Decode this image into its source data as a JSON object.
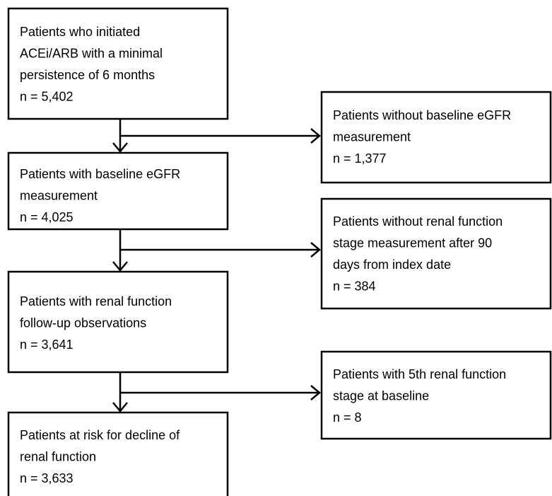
{
  "nodes": [
    {
      "lines": [
        "Patients who initiated",
        "ACEi/ARB with a minimal",
        "persistence of 6 months",
        "n = 5,402"
      ]
    },
    {
      "lines": [
        "Patients without baseline eGFR",
        "measurement",
        "n = 1,377"
      ]
    },
    {
      "lines": [
        "Patients with baseline eGFR",
        "measurement",
        "n = 4,025"
      ]
    },
    {
      "lines": [
        "Patients without renal function",
        "stage measurement after 90",
        "days from index date",
        "n = 384"
      ]
    },
    {
      "lines": [
        "Patients with renal function",
        "follow-up observations",
        "n = 3,641"
      ]
    },
    {
      "lines": [
        "Patients with 5th renal function",
        "stage at baseline",
        "n = 8"
      ]
    },
    {
      "lines": [
        "Patients at risk for decline of",
        "renal function",
        "n = 3,633"
      ]
    }
  ]
}
